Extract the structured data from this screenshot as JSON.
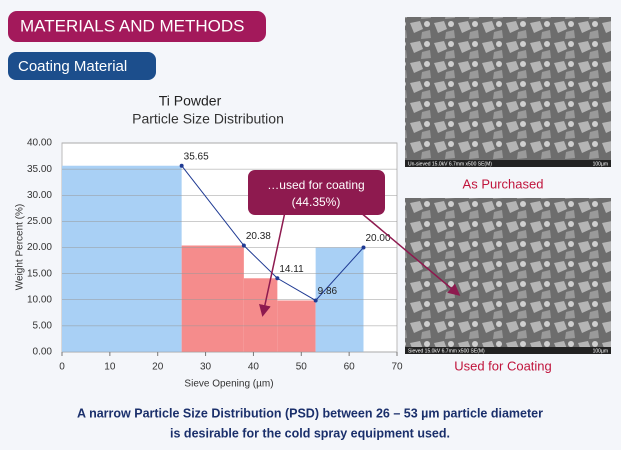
{
  "header": {
    "title": "MATERIALS AND METHODS",
    "subtitle": "Coating Material"
  },
  "images": [
    {
      "caption": "As Purchased",
      "info": "Un-sieved 15.0kV 6.7mm x500 SE(M)",
      "scale": "100µm"
    },
    {
      "caption": "Used for Coating",
      "info": "Sieved 15.0kV 6.7mm x500 SE(M)",
      "scale": "100µm"
    }
  ],
  "footer": [
    "A narrow Particle Size Distribution (PSD) between 26 – 53 µm particle diameter",
    "is desirable for the cold spray equipment used."
  ],
  "chart_data": {
    "type": "histogram",
    "title": "Ti Powder",
    "subtitle": "Particle Size Distribution",
    "x_label": "Sieve Opening (µm)",
    "y_label": "Weight Percent (%)",
    "bins": [
      0,
      25,
      38,
      45,
      53,
      63
    ],
    "values": [
      35.65,
      20.38,
      14.11,
      9.86,
      20.0
    ],
    "value_labels": [
      "35.65",
      "20.38",
      "14.11",
      "9.86",
      "20.00"
    ],
    "colors": [
      "#a9d0f5",
      "#f58c8c",
      "#f58c8c",
      "#f58c8c",
      "#a9d0f5"
    ],
    "line_color": "#1f3a93",
    "annotation": [
      "…used for coating",
      "(44.35%)"
    ],
    "xlim": [
      0,
      70
    ],
    "xticks": [
      0,
      10,
      20,
      30,
      40,
      50,
      60,
      70
    ],
    "ylim": [
      0,
      40
    ],
    "yticks": [
      {
        "value": 0,
        "label": "0.00"
      },
      {
        "value": 5,
        "label": "5.00"
      },
      {
        "value": 10,
        "label": "10.00"
      },
      {
        "value": 15,
        "label": "15.00"
      },
      {
        "value": 20,
        "label": "20.00"
      },
      {
        "value": 25,
        "label": "25.00"
      },
      {
        "value": 30,
        "label": "30.00"
      },
      {
        "value": 35,
        "label": "35.00"
      },
      {
        "value": 40,
        "label": "40.00"
      }
    ],
    "grid": true
  }
}
